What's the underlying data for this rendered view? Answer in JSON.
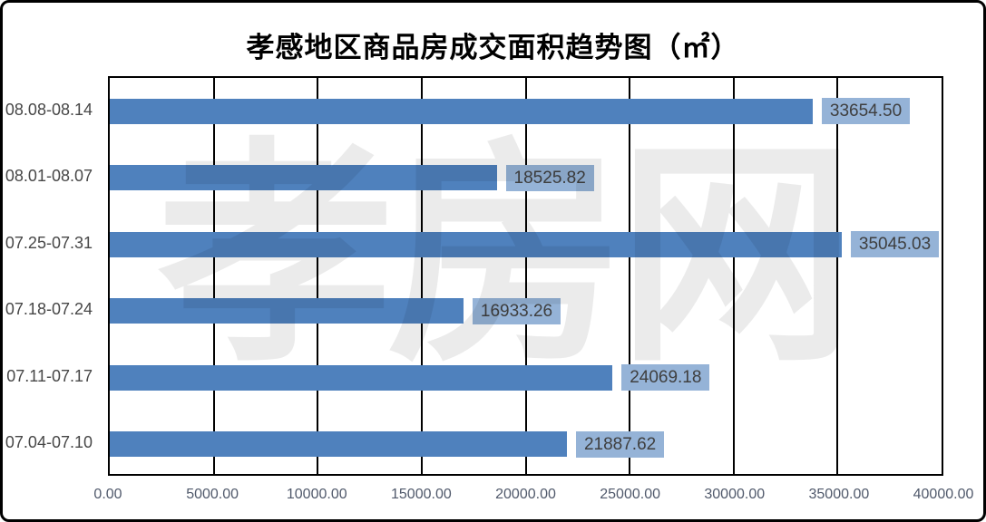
{
  "title": "孝感地区商品房成交面积趋势图（㎡）",
  "watermark": "孝房网",
  "chart_data": {
    "type": "bar",
    "orientation": "horizontal",
    "title": "孝感地区商品房成交面积趋势图（㎡）",
    "categories": [
      "08.08-08.14",
      "08.01-08.07",
      "07.25-07.31",
      "07.18-07.24",
      "07.11-07.17",
      "07.04-07.10"
    ],
    "values": [
      33654.5,
      18525.82,
      35045.03,
      16933.26,
      24069.18,
      21887.62
    ],
    "value_labels": [
      "33654.50",
      "18525.82",
      "35045.03",
      "16933.26",
      "24069.18",
      "21887.62"
    ],
    "x_ticks": [
      "0.00",
      "5000.00",
      "10000.00",
      "15000.00",
      "20000.00",
      "25000.00",
      "30000.00",
      "35000.00",
      "40000.00"
    ],
    "xlim": [
      0,
      40000
    ],
    "grid": "vertical-black-lines",
    "legend": "none",
    "colors": {
      "bar": "#4F81BD",
      "value_box_bg": "#95B3D7",
      "value_text": "#3F3F3F",
      "grid": "#000000",
      "tick_text": "#50596B",
      "category_text": "#474747",
      "border": "#000000"
    }
  }
}
